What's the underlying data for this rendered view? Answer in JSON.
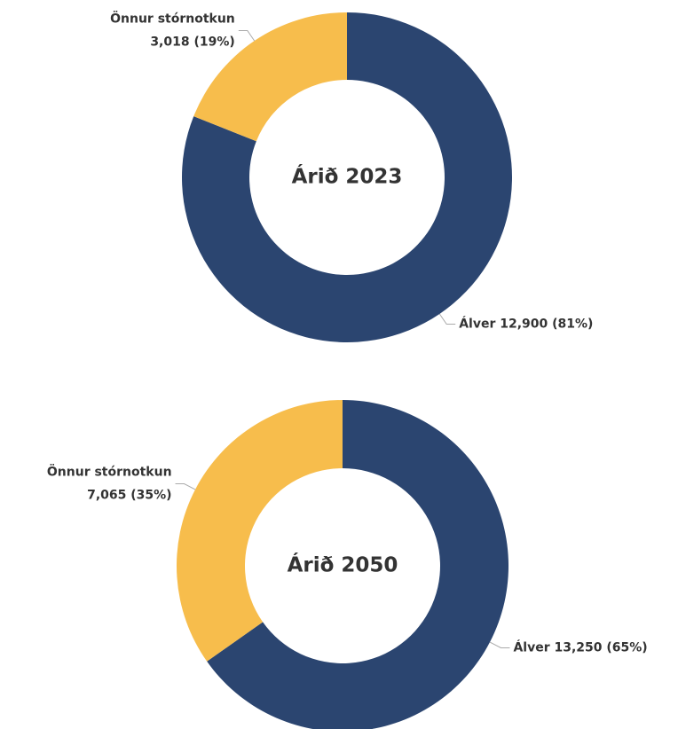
{
  "chart_data": [
    {
      "type": "donut",
      "title": "Árið 2023",
      "categories": [
        "Álver",
        "Önnur stórnotkun"
      ],
      "values": [
        12900,
        3018
      ],
      "value_labels": [
        "12,900 (81%)",
        "3,018 (19%)"
      ],
      "colors": [
        "#2b4570",
        "#f7bd4c"
      ]
    },
    {
      "type": "donut",
      "title": "Árið 2050",
      "categories": [
        "Álver",
        "Önnur stórnotkun"
      ],
      "values": [
        13250,
        7065
      ],
      "value_labels": [
        "13,250 (65%)",
        "7,065 (35%)"
      ],
      "colors": [
        "#2b4570",
        "#f7bd4c"
      ]
    }
  ]
}
